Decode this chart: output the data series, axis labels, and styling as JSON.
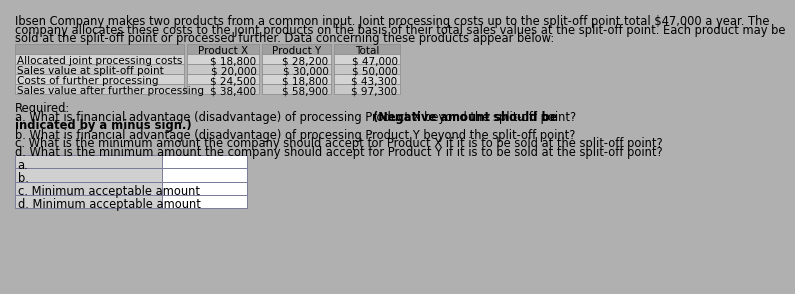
{
  "title_lines": [
    "Ibsen Company makes two products from a common input. Joint processing costs up to the split-off point total $47,000 a year. The",
    "company allocates these costs to the joint products on the basis of their total sales values at the split-off point. Each product may be",
    "sold at the split-off point or processed further. Data concerning these products appear below:"
  ],
  "table_headers": [
    "",
    "Product X",
    "Product Y",
    "Total"
  ],
  "table_rows": [
    [
      "Allocated joint processing costs",
      "$ 18,800",
      "$ 28,200",
      "$ 47,000"
    ],
    [
      "Sales value at split-off point",
      "$ 20,000",
      "$ 30,000",
      "$ 50,000"
    ],
    [
      "Costs of further processing",
      "$ 24,500",
      "$ 18,800",
      "$ 43,300"
    ],
    [
      "Sales value after further processing",
      "$ 38,400",
      "$ 58,900",
      "$ 97,300"
    ]
  ],
  "required_text": "Required:",
  "q_a_normal": "a. What is financial advantage (disadvantage) of processing Product X beyond the split-off point? ",
  "q_a_bold1": "(Negative amount should be",
  "q_a_bold2": "indicated by a minus sign.)",
  "q_b": "b. What is financial advantage (disadvantage) of processing Product Y beyond the split-off point?",
  "q_c": "c. What is the minimum amount the company should accept for Product X if it is to be sold at the split-off point?",
  "q_d": "d. What is the minimum amount the company should accept for Product Y if it is to be sold at the split-off point?",
  "answer_rows": [
    {
      "label": "a."
    },
    {
      "label": "b."
    },
    {
      "label": "c. Minimum acceptable amount"
    },
    {
      "label": "d. Minimum acceptable amount"
    }
  ],
  "bg_color": "#b0b0b0",
  "table_header_bg": "#a0a0a0",
  "row_colors": [
    "#d4d4d4",
    "#c8c8c8",
    "#d4d4d4",
    "#c8c8c8"
  ],
  "answer_label_bg": "#d0d0d0",
  "answer_input_bg": "#ffffff",
  "font_size_title": 8.3,
  "font_size_table": 7.5,
  "font_size_q": 8.3,
  "font_size_ans": 8.3
}
